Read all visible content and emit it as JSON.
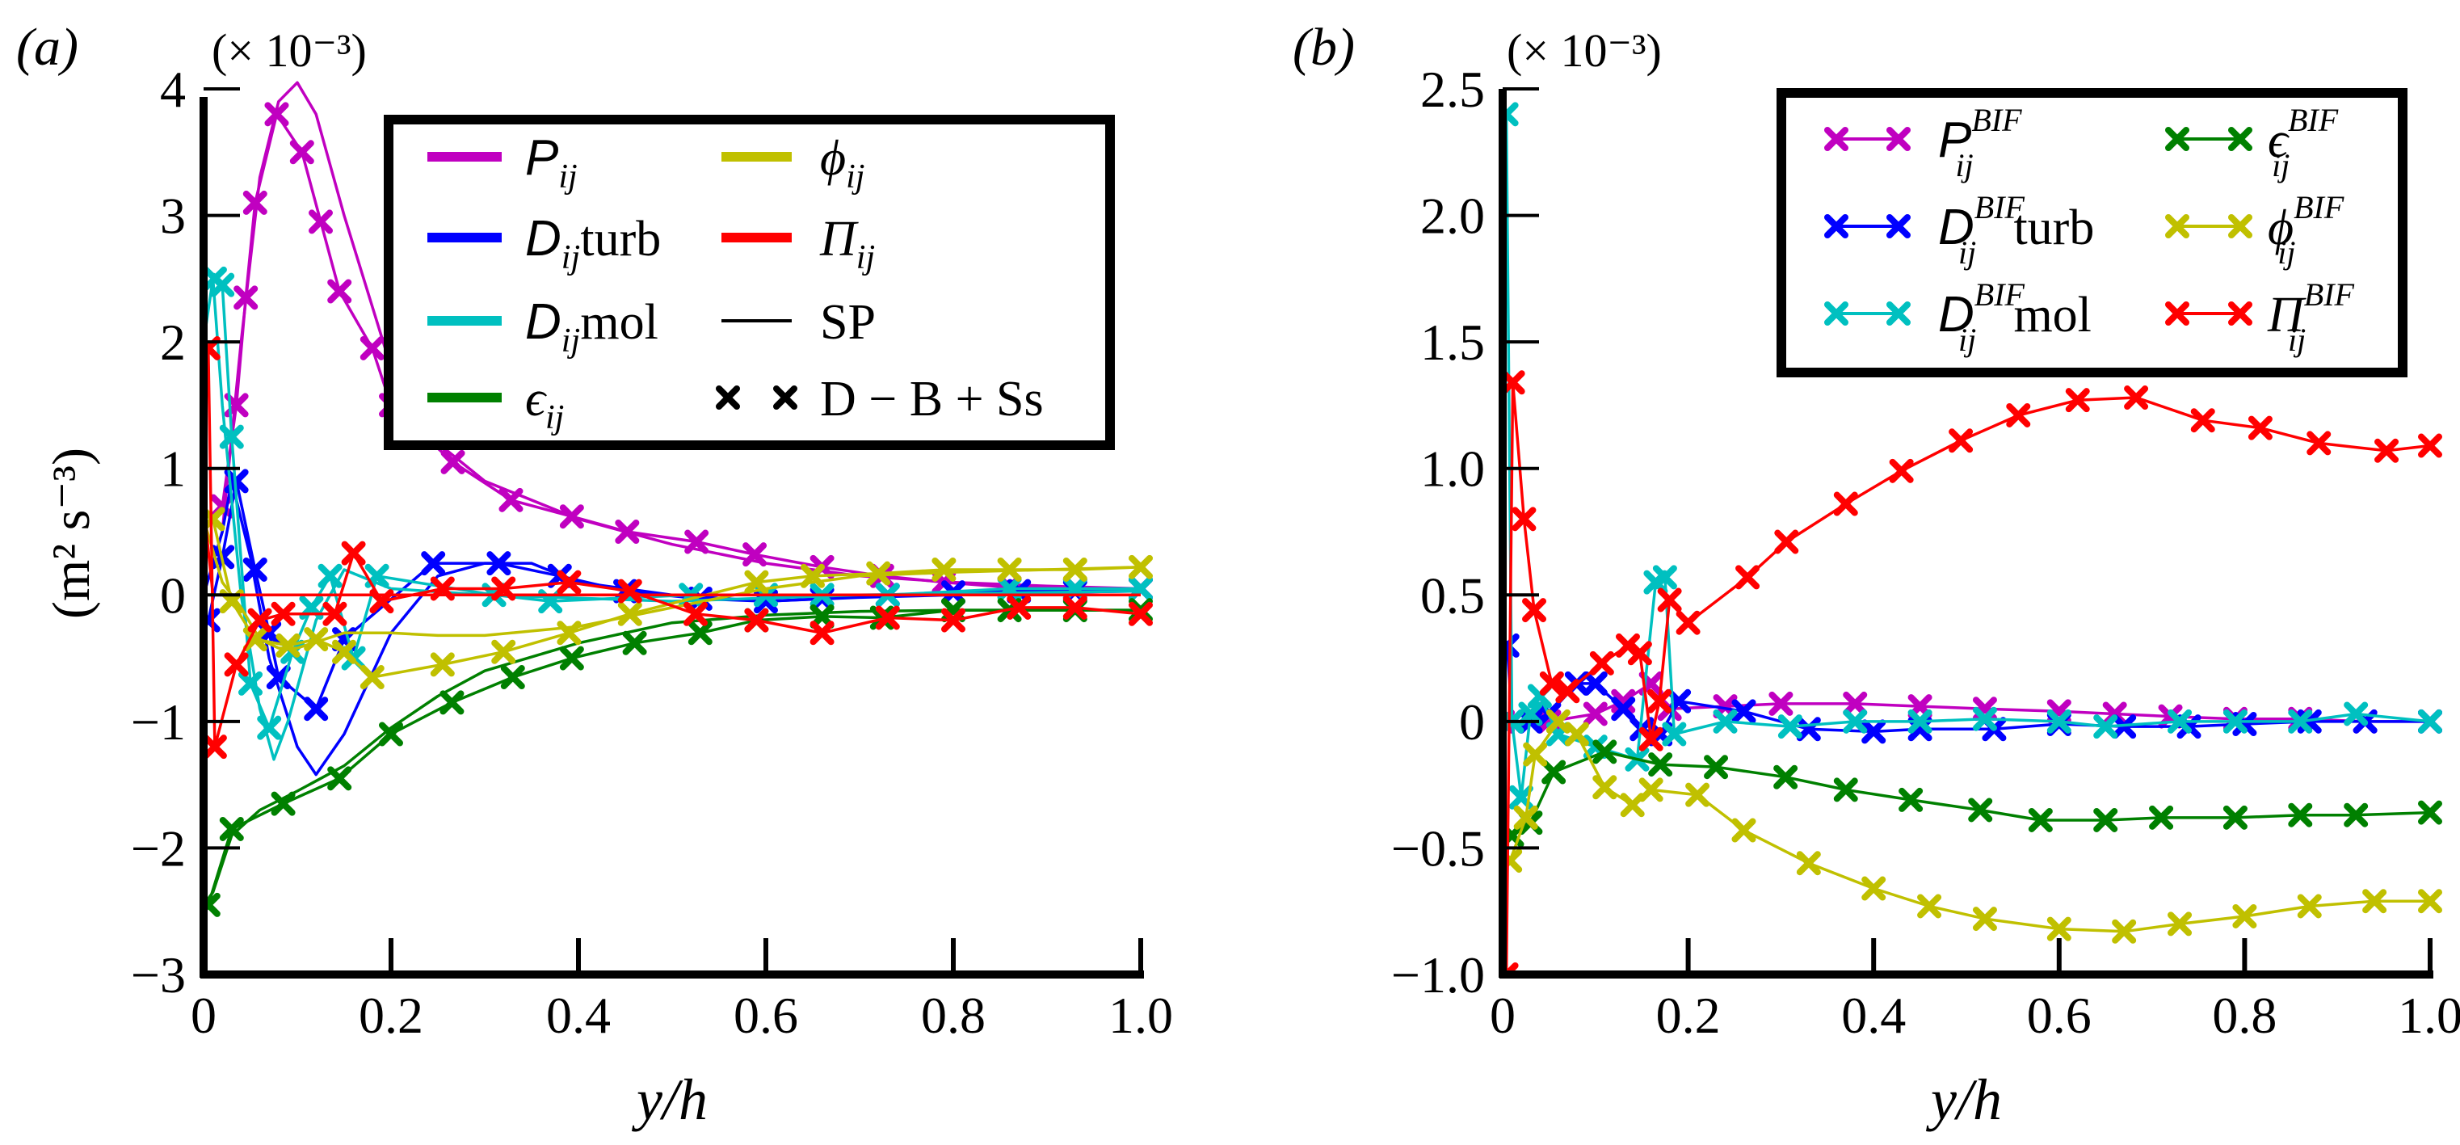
{
  "chart_data": [
    {
      "type": "line",
      "panel_label": "(a)",
      "scale_label": "(× 10⁻³)",
      "xlabel": "y/h",
      "ylabel": "(m² s⁻³)",
      "xlim": [
        0,
        1.0
      ],
      "ylim": [
        -3,
        4.5
      ],
      "xticks": [
        "0",
        "0.2",
        "0.4",
        "0.6",
        "0.8",
        "1.0"
      ],
      "xtick_values": [
        0,
        0.2,
        0.4,
        0.6,
        0.8,
        1.0
      ],
      "yticks": [
        "−3",
        "−2",
        "−1",
        "0",
        "1",
        "2",
        "3",
        "4"
      ],
      "ytick_values": [
        -3,
        -2,
        -1,
        0,
        1,
        2,
        3,
        4
      ],
      "grid": false,
      "legend_position": "top-right",
      "legend": [
        {
          "sym": "P",
          "sub": "ij",
          "sup": "",
          "suffix": "",
          "color": "#c000c0",
          "style": "line"
        },
        {
          "sym": "D",
          "sub": "ij",
          "sup": "",
          "suffix": " turb",
          "color": "#0000ff",
          "style": "line"
        },
        {
          "sym": "D",
          "sub": "ij",
          "sup": "",
          "suffix": " mol",
          "color": "#00c0c0",
          "style": "line"
        },
        {
          "sym": "ϵ",
          "sub": "ij",
          "sup": "",
          "suffix": "",
          "color": "#008000",
          "style": "line"
        },
        {
          "sym": "ϕ",
          "sub": "ij",
          "sup": "",
          "suffix": "",
          "color": "#c0c000",
          "style": "line"
        },
        {
          "sym": "Π",
          "sub": "ij",
          "sup": "",
          "suffix": "",
          "color": "#ff0000",
          "style": "line"
        },
        {
          "sym": "",
          "sub": "",
          "sup": "",
          "suffix": "SP",
          "color": "#000000",
          "style": "thin"
        },
        {
          "sym": "",
          "sub": "",
          "sup": "",
          "suffix": "D − B + Ss",
          "color": "#000000",
          "style": "markers"
        }
      ],
      "series": [
        {
          "quantity": "P_ij",
          "case": "SP",
          "color": "#c000c0",
          "markers": false,
          "x": [
            0,
            0.02,
            0.04,
            0.06,
            0.08,
            0.1,
            0.12,
            0.15,
            0.2,
            0.25,
            0.3,
            0.4,
            0.5,
            0.6,
            0.7,
            0.8,
            0.9,
            1.0
          ],
          "y": [
            0,
            0.5,
            2.0,
            3.3,
            3.9,
            4.05,
            3.8,
            3.0,
            1.8,
            1.2,
            0.9,
            0.6,
            0.4,
            0.25,
            0.15,
            0.1,
            0.07,
            0.05
          ]
        },
        {
          "quantity": "P_ij",
          "case": "D − B + Ss",
          "color": "#c000c0",
          "markers": true,
          "x": [
            0.02,
            0.035,
            0.045,
            0.055,
            0.078,
            0.105,
            0.125,
            0.145,
            0.18,
            0.2,
            0.266,
            0.328,
            0.393,
            0.452,
            0.526,
            0.588,
            0.66,
            0.724,
            0.79,
            0.86,
            0.93,
            1.0
          ],
          "y": [
            0.7,
            1.5,
            2.35,
            3.1,
            3.8,
            3.5,
            2.95,
            2.4,
            1.95,
            1.5,
            1.05,
            0.75,
            0.62,
            0.5,
            0.42,
            0.32,
            0.22,
            0.15,
            0.1,
            0.06,
            0.05,
            0.05
          ]
        },
        {
          "quantity": "D_ij turb",
          "case": "SP",
          "color": "#0000ff",
          "markers": false,
          "x": [
            0,
            0.02,
            0.03,
            0.05,
            0.07,
            0.1,
            0.12,
            0.15,
            0.2,
            0.25,
            0.3,
            0.35,
            0.4,
            0.5,
            0.6,
            0.7,
            0.8,
            0.9,
            1.0
          ],
          "y": [
            0,
            0.5,
            0.9,
            0.3,
            -0.5,
            -1.2,
            -1.42,
            -1.1,
            -0.3,
            0.15,
            0.25,
            0.25,
            0.1,
            0,
            -0.05,
            -0.02,
            0,
            0.02,
            0.03
          ]
        },
        {
          "quantity": "D_ij turb",
          "case": "D − B + Ss",
          "color": "#0000ff",
          "markers": true,
          "x": [
            0.005,
            0.02,
            0.035,
            0.055,
            0.07,
            0.08,
            0.12,
            0.15,
            0.245,
            0.315,
            0.38,
            0.45,
            0.53,
            0.6,
            0.66,
            0.73,
            0.8,
            0.87,
            0.93,
            1.0
          ],
          "y": [
            -0.2,
            0.3,
            0.9,
            0.2,
            -0.3,
            -0.65,
            -0.9,
            -0.35,
            0.25,
            0.25,
            0.15,
            0.03,
            -0.03,
            -0.05,
            -0.03,
            0,
            0.02,
            0.03,
            0.03,
            0.05
          ]
        },
        {
          "quantity": "D_ij mol",
          "case": "SP",
          "color": "#00c0c0",
          "markers": false,
          "x": [
            0,
            0.01,
            0.02,
            0.04,
            0.06,
            0.075,
            0.09,
            0.12,
            0.15,
            0.2,
            0.3,
            0.5,
            0.7,
            1.0
          ],
          "y": [
            2.0,
            2.5,
            1.5,
            0,
            -0.9,
            -1.3,
            -1.0,
            -0.2,
            0.2,
            0.05,
            0,
            -0.05,
            0,
            0.03
          ]
        },
        {
          "quantity": "D_ij mol",
          "case": "D − B + Ss",
          "color": "#00c0c0",
          "markers": true,
          "x": [
            0.012,
            0.02,
            0.03,
            0.05,
            0.07,
            0.095,
            0.115,
            0.135,
            0.16,
            0.185,
            0.31,
            0.37,
            0.52,
            0.6,
            0.66,
            0.73,
            0.86,
            0.93,
            1.0
          ],
          "y": [
            2.5,
            2.45,
            1.25,
            -0.7,
            -1.05,
            -0.45,
            -0.1,
            0.15,
            -0.5,
            0.15,
            0,
            -0.05,
            0,
            0,
            0,
            0,
            0.05,
            0.05,
            0.05
          ]
        },
        {
          "quantity": "ϵ_ij",
          "case": "SP",
          "color": "#008000",
          "markers": false,
          "x": [
            0,
            0.01,
            0.03,
            0.06,
            0.1,
            0.15,
            0.2,
            0.25,
            0.3,
            0.4,
            0.5,
            0.6,
            0.7,
            0.8,
            0.9,
            1.0
          ],
          "y": [
            -2.45,
            -2.35,
            -1.9,
            -1.7,
            -1.55,
            -1.35,
            -1.05,
            -0.8,
            -0.6,
            -0.38,
            -0.22,
            -0.16,
            -0.13,
            -0.12,
            -0.12,
            -0.12
          ]
        },
        {
          "quantity": "ϵ_ij",
          "case": "D − B + Ss",
          "color": "#008000",
          "markers": true,
          "x": [
            0.005,
            0.03,
            0.085,
            0.145,
            0.2,
            0.265,
            0.33,
            0.393,
            0.46,
            0.53,
            0.59,
            0.66,
            0.724,
            0.8,
            0.86,
            0.93,
            1.0
          ],
          "y": [
            -2.45,
            -1.85,
            -1.65,
            -1.45,
            -1.1,
            -0.85,
            -0.65,
            -0.5,
            -0.38,
            -0.3,
            -0.2,
            -0.17,
            -0.18,
            -0.12,
            -0.12,
            -0.12,
            -0.12
          ]
        },
        {
          "quantity": "ϕ_ij",
          "case": "SP",
          "color": "#c0c000",
          "markers": false,
          "x": [
            0,
            0.02,
            0.04,
            0.06,
            0.08,
            0.1,
            0.15,
            0.2,
            0.25,
            0.3,
            0.4,
            0.5,
            0.6,
            0.7,
            0.8,
            0.9,
            1.0
          ],
          "y": [
            0.6,
            0.1,
            -0.1,
            -0.35,
            -0.42,
            -0.42,
            -0.3,
            -0.3,
            -0.32,
            -0.32,
            -0.25,
            -0.1,
            0.05,
            0.15,
            0.18,
            0.2,
            0.22
          ]
        },
        {
          "quantity": "ϕ_ij",
          "case": "D − B + Ss",
          "color": "#c0c000",
          "markers": true,
          "x": [
            0.01,
            0.03,
            0.055,
            0.09,
            0.12,
            0.15,
            0.18,
            0.255,
            0.32,
            0.39,
            0.455,
            0.59,
            0.65,
            0.72,
            0.79,
            0.86,
            0.93,
            1.0
          ],
          "y": [
            0.6,
            -0.05,
            -0.35,
            -0.4,
            -0.35,
            -0.45,
            -0.65,
            -0.55,
            -0.45,
            -0.3,
            -0.15,
            0.1,
            0.15,
            0.17,
            0.2,
            0.2,
            0.2,
            0.22
          ]
        },
        {
          "quantity": "Π_ij",
          "case": "SP",
          "color": "#ff0000",
          "markers": false,
          "x": [
            0,
            0.003,
            0.01,
            1.0
          ],
          "y": [
            2.0,
            0.5,
            0,
            0
          ]
        },
        {
          "quantity": "Π_ij",
          "case": "D − B + Ss",
          "color": "#ff0000",
          "markers": true,
          "x": [
            0.005,
            0.012,
            0.035,
            0.06,
            0.085,
            0.14,
            0.16,
            0.19,
            0.255,
            0.32,
            0.39,
            0.455,
            0.525,
            0.59,
            0.66,
            0.73,
            0.8,
            0.87,
            0.93,
            1.0
          ],
          "y": [
            1.95,
            -1.2,
            -0.55,
            -0.2,
            -0.15,
            -0.15,
            0.33,
            -0.05,
            0.05,
            0.05,
            0.1,
            0.03,
            -0.15,
            -0.2,
            -0.3,
            -0.18,
            -0.2,
            -0.1,
            -0.1,
            -0.15
          ]
        }
      ]
    },
    {
      "type": "line",
      "panel_label": "(b)",
      "scale_label": "(× 10⁻³)",
      "xlabel": "y/h",
      "ylabel": "",
      "xlim": [
        0,
        1.0
      ],
      "ylim": [
        -1.0,
        2.5
      ],
      "xticks": [
        "0",
        "0.2",
        "0.4",
        "0.6",
        "0.8",
        "1.0"
      ],
      "xtick_values": [
        0,
        0.2,
        0.4,
        0.6,
        0.8,
        1.0
      ],
      "yticks": [
        "−1.0",
        "−0.5",
        "0",
        "0.5",
        "1.0",
        "1.5",
        "2.0",
        "2.5"
      ],
      "ytick_values": [
        -1.0,
        -0.5,
        0,
        0.5,
        1.0,
        1.5,
        2.0,
        2.5
      ],
      "grid": false,
      "legend_position": "top-right",
      "legend": [
        {
          "sym": "P",
          "sub": "ij",
          "sup": "BIF",
          "suffix": "",
          "color": "#c000c0",
          "style": "linemarkers"
        },
        {
          "sym": "D",
          "sub": "ij",
          "sup": "BIF",
          "suffix": " turb",
          "color": "#0000ff",
          "style": "linemarkers"
        },
        {
          "sym": "D",
          "sub": "ij",
          "sup": "BIF",
          "suffix": " mol",
          "color": "#00c0c0",
          "style": "linemarkers"
        },
        {
          "sym": "ϵ",
          "sub": "ij",
          "sup": "BIF",
          "suffix": "",
          "color": "#008000",
          "style": "linemarkers"
        },
        {
          "sym": "ϕ",
          "sub": "ij",
          "sup": "BIF",
          "suffix": "",
          "color": "#c0c000",
          "style": "linemarkers"
        },
        {
          "sym": "Π",
          "sub": "ij",
          "sup": "BIF",
          "suffix": "",
          "color": "#ff0000",
          "style": "linemarkers"
        }
      ],
      "series": [
        {
          "quantity": "P_ij^BIF",
          "color": "#c000c0",
          "markers": true,
          "x": [
            0,
            0.05,
            0.1,
            0.13,
            0.16,
            0.18,
            0.24,
            0.3,
            0.38,
            0.45,
            0.52,
            0.6,
            0.66,
            0.72,
            0.79,
            0.86,
            0.93,
            1.0
          ],
          "y": [
            0,
            0,
            0.03,
            0.08,
            0.15,
            0.05,
            0.06,
            0.07,
            0.07,
            0.06,
            0.05,
            0.04,
            0.03,
            0.02,
            0.01,
            0.01,
            0,
            0
          ]
        },
        {
          "quantity": "D_ij^BIF turb",
          "color": "#0000ff",
          "markers": true,
          "x": [
            0.005,
            0.01,
            0.03,
            0.05,
            0.08,
            0.1,
            0.13,
            0.15,
            0.17,
            0.19,
            0.26,
            0.33,
            0.4,
            0.45,
            0.53,
            0.6,
            0.67,
            0.74,
            0.8,
            0.87,
            0.93,
            1.0
          ],
          "y": [
            0.3,
            0,
            0,
            0.03,
            0.15,
            0.15,
            0.05,
            -0.03,
            -0.05,
            0.08,
            0.04,
            -0.03,
            -0.04,
            -0.03,
            -0.03,
            -0.01,
            -0.02,
            -0.02,
            -0.01,
            0,
            0,
            0
          ]
        },
        {
          "quantity": "D_ij^BIF mol",
          "color": "#00c0c0",
          "markers": true,
          "x": [
            0.004,
            0.01,
            0.02,
            0.03,
            0.04,
            0.06,
            0.1,
            0.145,
            0.165,
            0.175,
            0.185,
            0.24,
            0.31,
            0.38,
            0.45,
            0.52,
            0.6,
            0.65,
            0.73,
            0.79,
            0.86,
            0.92,
            1.0
          ],
          "y": [
            2.4,
            0,
            -0.3,
            0.03,
            0.1,
            -0.05,
            -0.1,
            -0.15,
            0.55,
            0.57,
            -0.05,
            0,
            -0.02,
            0,
            0,
            0.01,
            0,
            -0.02,
            0,
            0,
            0,
            0.03,
            0
          ]
        },
        {
          "quantity": "ϵ_ij^BIF",
          "color": "#008000",
          "markers": true,
          "x": [
            0.01,
            0.03,
            0.055,
            0.11,
            0.17,
            0.23,
            0.305,
            0.37,
            0.44,
            0.515,
            0.58,
            0.65,
            0.71,
            0.79,
            0.86,
            0.92,
            1.0
          ],
          "y": [
            -0.45,
            -0.4,
            -0.2,
            -0.12,
            -0.17,
            -0.18,
            -0.22,
            -0.27,
            -0.31,
            -0.35,
            -0.39,
            -0.39,
            -0.38,
            -0.38,
            -0.37,
            -0.37,
            -0.36
          ]
        },
        {
          "quantity": "ϕ_ij^BIF",
          "color": "#c0c000",
          "markers": true,
          "x": [
            0.008,
            0.025,
            0.035,
            0.06,
            0.08,
            0.11,
            0.14,
            0.16,
            0.21,
            0.26,
            0.33,
            0.4,
            0.46,
            0.52,
            0.6,
            0.67,
            0.73,
            0.8,
            0.87,
            0.94,
            1.0
          ],
          "y": [
            -0.55,
            -0.38,
            -0.13,
            0,
            -0.05,
            -0.26,
            -0.33,
            -0.27,
            -0.29,
            -0.43,
            -0.56,
            -0.66,
            -0.73,
            -0.78,
            -0.82,
            -0.83,
            -0.8,
            -0.77,
            -0.73,
            -0.71,
            -0.71
          ]
        },
        {
          "quantity": "Π_ij^BIF",
          "color": "#ff0000",
          "markers": true,
          "x": [
            0.004,
            0.011,
            0.023,
            0.034,
            0.053,
            0.07,
            0.107,
            0.135,
            0.148,
            0.16,
            0.169,
            0.18,
            0.2,
            0.264,
            0.306,
            0.37,
            0.43,
            0.494,
            0.556,
            0.62,
            0.683,
            0.755,
            0.817,
            0.88,
            0.953,
            1.0
          ],
          "y": [
            -1.0,
            1.34,
            0.8,
            0.44,
            0.15,
            0.12,
            0.23,
            0.3,
            0.27,
            -0.07,
            0.08,
            0.48,
            0.39,
            0.57,
            0.71,
            0.86,
            0.99,
            1.11,
            1.21,
            1.27,
            1.28,
            1.19,
            1.16,
            1.1,
            1.07,
            1.09
          ]
        }
      ]
    }
  ]
}
